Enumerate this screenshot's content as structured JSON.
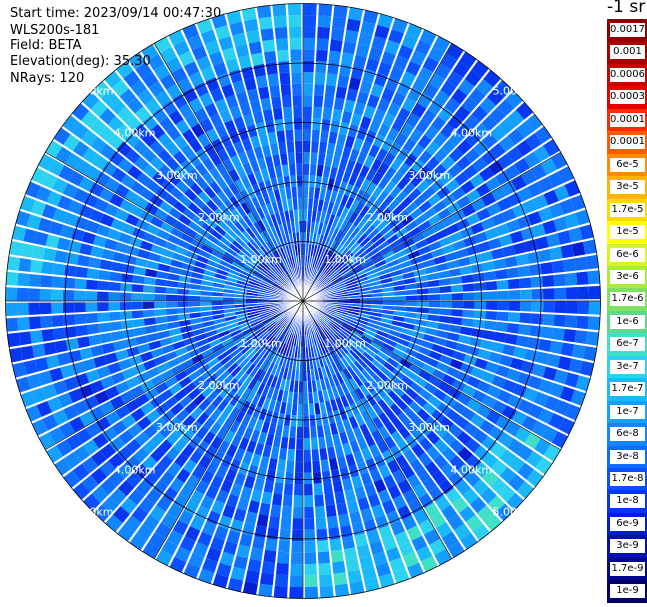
{
  "header": {
    "start_time": "Start time: 2023/09/14 00:47:30",
    "instrument": "WLS200s-181",
    "field": "Field: BETA",
    "elevation": "Elevation(deg): 35.30",
    "nrays": "NRays: 120"
  },
  "colorbar": {
    "unit_label": "-1 sr",
    "labels": [
      "0.0017",
      "0.001",
      "0.0006",
      "0.0003",
      "0.00017",
      "0.0001",
      "6e-5",
      "3e-5",
      "1.7e-5",
      "1e-5",
      "6e-6",
      "3e-6",
      "1.7e-6",
      "1e-6",
      "6e-7",
      "3e-7",
      "1.7e-7",
      "1e-7",
      "6e-8",
      "3e-8",
      "1.7e-8",
      "1e-8",
      "6e-9",
      "3e-9",
      "1.7e-9",
      "1e-9"
    ],
    "colors": [
      "#8b0000",
      "#a80000",
      "#c80000",
      "#e60000",
      "#ff2a00",
      "#ff5a00",
      "#ff8c00",
      "#ffb400",
      "#ffd800",
      "#ffff00",
      "#d8f51c",
      "#aaec3a",
      "#80e060",
      "#5cd88a",
      "#40e0c8",
      "#2cd2f0",
      "#1abaf8",
      "#14a0ff",
      "#1286ff",
      "#106cff",
      "#0a50ff",
      "#0636f0",
      "#041ed0",
      "#0410b0",
      "#030890",
      "#02006a"
    ]
  },
  "chart_data": {
    "type": "heatmap",
    "projection": "polar PPI",
    "field": "BETA",
    "nrays": 120,
    "range_rings_km": [
      1.0,
      2.0,
      3.0,
      4.0,
      5.0
    ],
    "ring_labels": [
      "1.00km",
      "2.00km",
      "3.00km",
      "4.00km",
      "5.00km"
    ],
    "max_range_km": 5.0,
    "color_scale": "log",
    "value_range": [
      1e-09,
      0.0017
    ],
    "grid": true,
    "typical_value": "3e-8",
    "regions": [
      {
        "range_km": [
          0.0,
          1.0
        ],
        "value": "1e-8"
      },
      {
        "range_km": [
          1.0,
          4.0
        ],
        "value": "3e-8"
      },
      {
        "range_km": [
          4.0,
          5.0
        ],
        "azimuth_deg": [
          270,
          360
        ],
        "value": "1e-7"
      },
      {
        "range_km": [
          4.0,
          5.0
        ],
        "azimuth_deg": [
          120,
          180
        ],
        "value": "1.7e-7"
      }
    ]
  }
}
